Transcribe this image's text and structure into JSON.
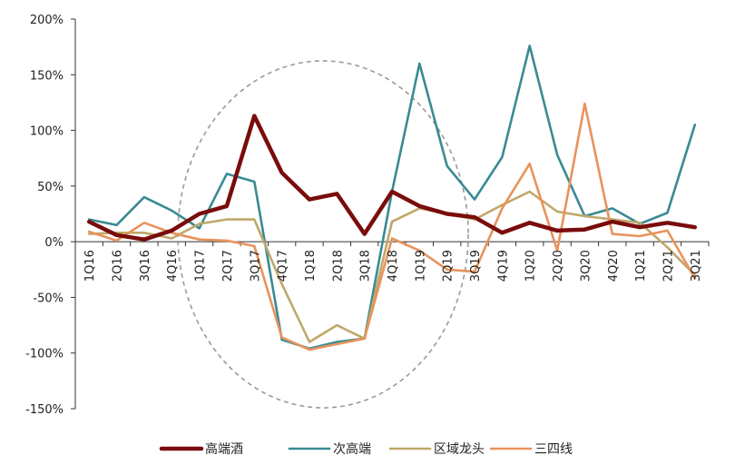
{
  "chart_data": {
    "type": "line",
    "categories": [
      "1Q16",
      "2Q16",
      "3Q16",
      "4Q16",
      "1Q17",
      "2Q17",
      "3Q17",
      "4Q17",
      "1Q18",
      "2Q18",
      "3Q18",
      "4Q18",
      "1Q19",
      "2Q19",
      "3Q19",
      "4Q19",
      "1Q20",
      "2Q20",
      "3Q20",
      "4Q20",
      "1Q21",
      "2Q21",
      "3Q21"
    ],
    "series": [
      {
        "name": "高端酒",
        "color": "#7a0c0c",
        "values": [
          18,
          6,
          2,
          10,
          25,
          32,
          113,
          62,
          38,
          43,
          7,
          45,
          32,
          25,
          22,
          8,
          17,
          10,
          11,
          18,
          13,
          17,
          13
        ]
      },
      {
        "name": "次高端",
        "color": "#3a8a94",
        "values": [
          20,
          15,
          40,
          28,
          12,
          61,
          54,
          -88,
          -96,
          -90,
          -87,
          45,
          160,
          68,
          38,
          76,
          176,
          78,
          23,
          30,
          16,
          26,
          105
        ]
      },
      {
        "name": "区域龙头",
        "color": "#bfa86a",
        "values": [
          7,
          8,
          8,
          3,
          16,
          20,
          20,
          -38,
          -90,
          -75,
          -87,
          18,
          30,
          25,
          20,
          33,
          45,
          27,
          23,
          20,
          17,
          -5,
          -30
        ]
      },
      {
        "name": "三四线",
        "color": "#e8935c",
        "values": [
          9,
          1,
          17,
          8,
          2,
          1,
          -4,
          -86,
          -97,
          -92,
          -87,
          3,
          -8,
          -25,
          -27,
          30,
          70,
          -8,
          124,
          7,
          5,
          10,
          -33
        ]
      }
    ],
    "ylim": [
      -150,
      200
    ],
    "yticks": [
      -150,
      -100,
      -50,
      0,
      50,
      100,
      150,
      200
    ],
    "yticklabels": [
      "-150%",
      "-100%",
      "-50%",
      "0%",
      "50%",
      "100%",
      "150%",
      "200%"
    ],
    "legend_position": "bottom",
    "annotation": "dashed ellipse"
  }
}
